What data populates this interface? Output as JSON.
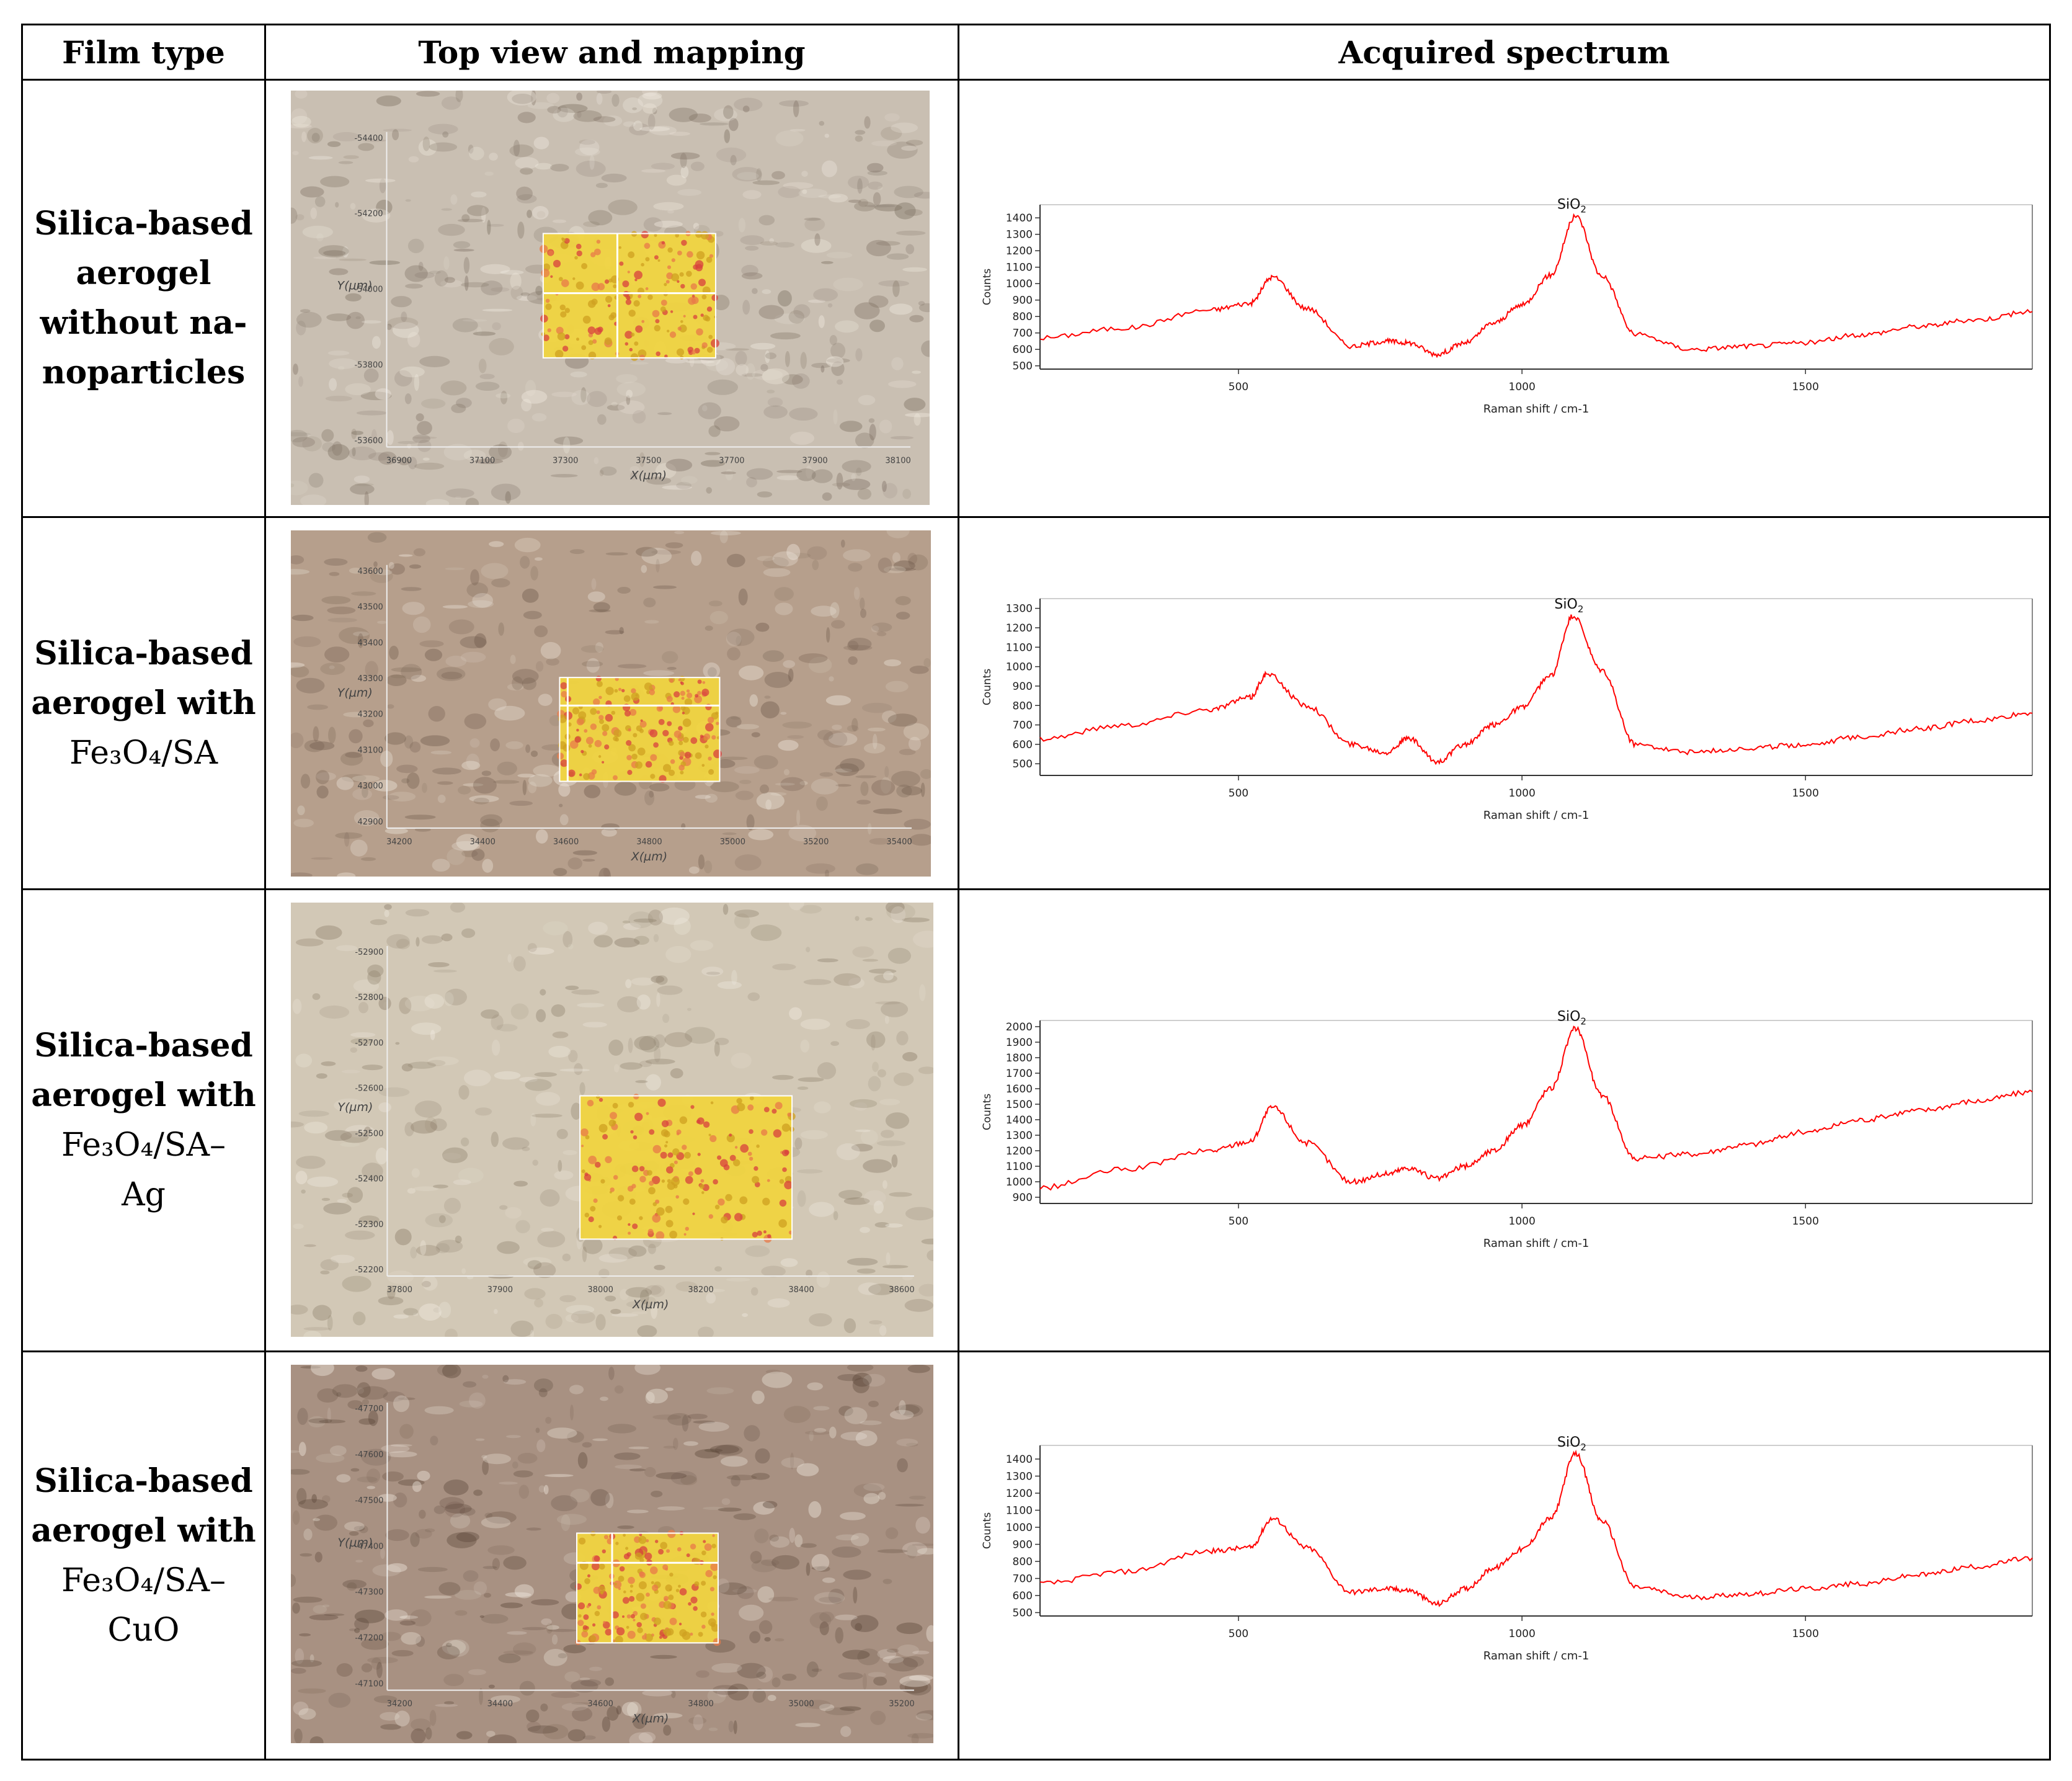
{
  "table": {
    "headers": [
      "Film type",
      "Top view and mapping",
      "Acquired spectrum"
    ],
    "rows": [
      {
        "label_bold": [
          "Silica-based",
          "aerogel",
          "without na-",
          "noparticles"
        ],
        "label_plain": [],
        "micro": {
          "x_label": "X(µm)",
          "y_label": "Y(µm)",
          "x_ticks": [
            "36900",
            "37100",
            "37300",
            "37500",
            "37700",
            "37900",
            "38100"
          ],
          "y_ticks": [
            "-54400",
            "-54200",
            "-54000",
            "-53800",
            "-53600"
          ]
        },
        "spectrum": {
          "peak_label": "SiO2",
          "ylabel": "Counts",
          "xlabel": "Raman shift / cm-1",
          "y_ticks": [
            "1400",
            "1300",
            "1200",
            "1100",
            "1000",
            "900",
            "800",
            "700",
            "600",
            "500"
          ],
          "x_ticks": [
            "500",
            "1000",
            "1500"
          ]
        }
      },
      {
        "label_bold": [
          "Silica-based",
          "aerogel with"
        ],
        "label_plain": [
          "Fe₃O₄/SA"
        ],
        "micro": {
          "x_label": "X(µm)",
          "y_label": "Y(µm)",
          "x_ticks": [
            "34200",
            "34400",
            "34600",
            "34800",
            "35000",
            "35200",
            "35400"
          ],
          "y_ticks": [
            "43600",
            "43500",
            "43400",
            "43300",
            "43200",
            "43100",
            "43000",
            "42900"
          ]
        },
        "spectrum": {
          "peak_label": "SiO2",
          "ylabel": "Counts",
          "xlabel": "Raman shift / cm-1",
          "y_ticks": [
            "1300",
            "1200",
            "1100",
            "1000",
            "900",
            "800",
            "700",
            "600",
            "500"
          ],
          "x_ticks": [
            "500",
            "1000",
            "1500"
          ]
        }
      },
      {
        "label_bold": [
          "Silica-based",
          "aerogel with"
        ],
        "label_plain": [
          "Fe₃O₄/SA–",
          "Ag"
        ],
        "micro": {
          "x_label": "X(µm)",
          "y_label": "Y(µm)",
          "x_ticks": [
            "37800",
            "37900",
            "38000",
            "38200",
            "38400",
            "38600"
          ],
          "y_ticks": [
            "-52900",
            "-52800",
            "-52700",
            "-52600",
            "-52500",
            "-52400",
            "-52300",
            "-52200"
          ]
        },
        "spectrum": {
          "peak_label": "SiO2",
          "ylabel": "Counts",
          "xlabel": "Raman shift / cm-1",
          "y_ticks": [
            "2000",
            "1900",
            "1800",
            "1700",
            "1600",
            "1500",
            "1400",
            "1300",
            "1200",
            "1100",
            "1000",
            "900"
          ],
          "x_ticks": [
            "500",
            "1000",
            "1500"
          ]
        }
      },
      {
        "label_bold": [
          "Silica-based",
          "aerogel with"
        ],
        "label_plain": [
          "Fe₃O₄/SA–",
          "CuO"
        ],
        "micro": {
          "x_label": "X(µm)",
          "y_label": "Y(µm)",
          "x_ticks": [
            "34200",
            "34400",
            "34600",
            "34800",
            "35000",
            "35200"
          ],
          "y_ticks": [
            "-47700",
            "-47600",
            "-47500",
            "-47400",
            "-47300",
            "-47200",
            "-47100"
          ]
        },
        "spectrum": {
          "peak_label": "SiO2",
          "ylabel": "Counts",
          "xlabel": "Raman shift / cm-1",
          "y_ticks": [
            "1400",
            "1300",
            "1200",
            "1100",
            "1000",
            "900",
            "800",
            "700",
            "600",
            "500"
          ],
          "x_ticks": [
            "500",
            "1000",
            "1500"
          ]
        }
      }
    ]
  },
  "chart_data": [
    {
      "type": "line",
      "title": "",
      "xlabel": "Raman shift / cm-1",
      "ylabel": "Counts",
      "annotation": "SiO2",
      "xlim": [
        150,
        1900
      ],
      "ylim": [
        480,
        1480
      ],
      "series": [
        {
          "name": "Silica-based aerogel without nanoparticles",
          "color": "#ff0000",
          "x": [
            150,
            300,
            450,
            520,
            560,
            620,
            700,
            760,
            800,
            850,
            900,
            950,
            1000,
            1050,
            1095,
            1140,
            1200,
            1300,
            1400,
            1500,
            1600,
            1700,
            1800,
            1900
          ],
          "y": [
            670,
            730,
            840,
            880,
            1040,
            850,
            620,
            650,
            640,
            570,
            640,
            760,
            870,
            1050,
            1410,
            1050,
            690,
            600,
            620,
            640,
            690,
            740,
            780,
            830
          ]
        }
      ]
    },
    {
      "type": "line",
      "title": "",
      "xlabel": "Raman shift / cm-1",
      "ylabel": "Counts",
      "annotation": "SiO2",
      "xlim": [
        150,
        1900
      ],
      "ylim": [
        440,
        1350
      ],
      "series": [
        {
          "name": "Silica-based aerogel with Fe3O4/SA",
          "color": "#ff0000",
          "x": [
            150,
            300,
            450,
            520,
            550,
            620,
            700,
            760,
            800,
            850,
            900,
            950,
            1000,
            1050,
            1090,
            1140,
            1200,
            1300,
            1400,
            1500,
            1600,
            1700,
            1800,
            1900
          ],
          "y": [
            630,
            700,
            780,
            840,
            960,
            800,
            600,
            560,
            630,
            510,
            600,
            700,
            790,
            950,
            1260,
            980,
            600,
            560,
            580,
            600,
            640,
            680,
            720,
            760
          ]
        }
      ]
    },
    {
      "type": "line",
      "title": "",
      "xlabel": "Raman shift / cm-1",
      "ylabel": "Counts",
      "annotation": "SiO2",
      "xlim": [
        150,
        1900
      ],
      "ylim": [
        860,
        2040
      ],
      "series": [
        {
          "name": "Silica-based aerogel with Fe3O4/SA-Ag",
          "color": "#ff0000",
          "x": [
            150,
            300,
            450,
            520,
            560,
            620,
            700,
            760,
            800,
            850,
            900,
            950,
            1000,
            1050,
            1095,
            1140,
            1200,
            1300,
            1400,
            1500,
            1600,
            1700,
            1800,
            1900
          ],
          "y": [
            960,
            1080,
            1200,
            1260,
            1480,
            1250,
            1000,
            1050,
            1090,
            1020,
            1100,
            1200,
            1360,
            1600,
            1990,
            1560,
            1150,
            1180,
            1240,
            1320,
            1400,
            1460,
            1520,
            1580
          ]
        }
      ]
    },
    {
      "type": "line",
      "title": "",
      "xlabel": "Raman shift / cm-1",
      "ylabel": "Counts",
      "annotation": "SiO2",
      "xlim": [
        150,
        1900
      ],
      "ylim": [
        480,
        1480
      ],
      "series": [
        {
          "name": "Silica-based aerogel with Fe3O4/SA-CuO",
          "color": "#ff0000",
          "x": [
            150,
            300,
            450,
            520,
            560,
            620,
            700,
            760,
            800,
            850,
            900,
            950,
            1000,
            1050,
            1095,
            1140,
            1200,
            1300,
            1400,
            1500,
            1600,
            1700,
            1800,
            1900
          ],
          "y": [
            670,
            740,
            860,
            880,
            1050,
            880,
            620,
            640,
            630,
            550,
            640,
            760,
            870,
            1050,
            1430,
            1040,
            650,
            590,
            610,
            640,
            670,
            720,
            770,
            820
          ]
        }
      ]
    }
  ]
}
